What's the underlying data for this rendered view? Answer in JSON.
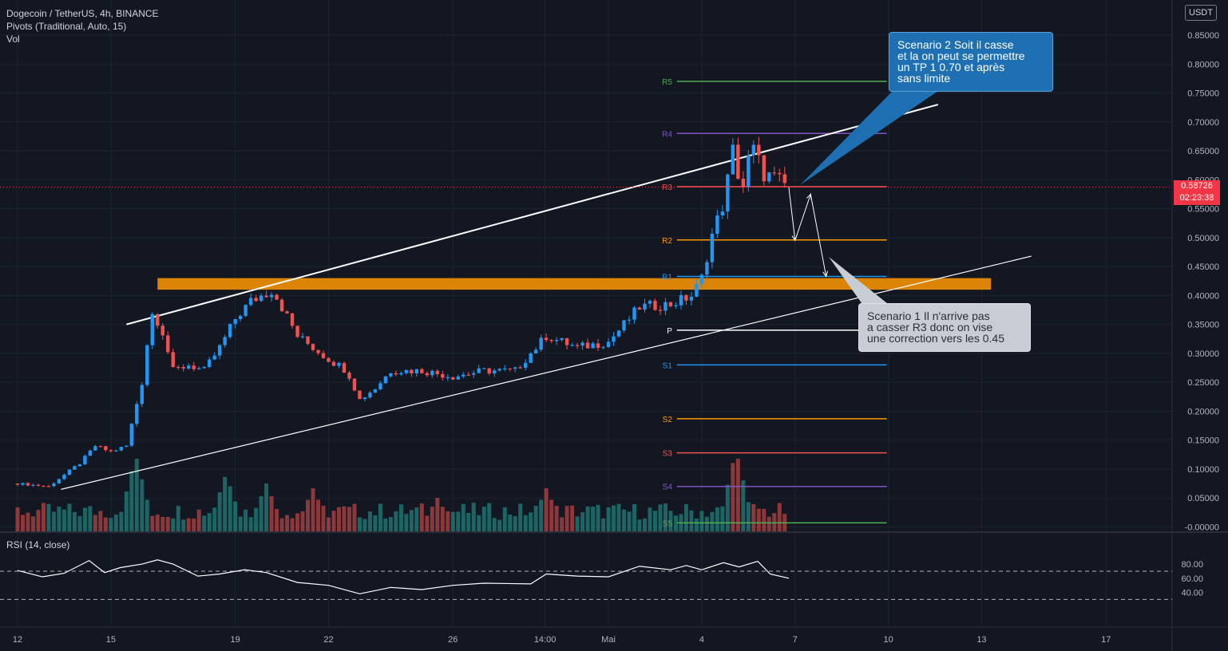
{
  "symbol_line": "Dogecoin / TetherUS, 4h, BINANCE",
  "pivots_line": "Pivots (Traditional, Auto, 15)",
  "vol_line": "Vol",
  "rsi_label": "RSI (14, close)",
  "currency_badge": "USDT",
  "current_price": "0.58726",
  "countdown": "02:23:38",
  "callout_scenario2": [
    "Scenario 2 Soit il casse",
    "et la on peut se permettre",
    "un TP 1 0.70 et après",
    "sans limite"
  ],
  "callout_scenario1": [
    "Scenario 1 Il n'arrive pas",
    "a casser R3 donc on vise",
    "une correction vers les 0.45"
  ],
  "colors": {
    "background": "#131722",
    "up_candle": "#2196f3",
    "down_candle": "#ef5350",
    "vol_up": "#26a69a",
    "vol_down": "#ef5350",
    "R5": "#4caf50",
    "R4": "#7e57c2",
    "R3": "#ef5350",
    "R2": "#ff9800",
    "R1": "#2196f3",
    "P": "#ffffff",
    "S1": "#2196f3",
    "S2": "#ff9800",
    "S3": "#ef5350",
    "S4": "#7e57c2",
    "S5": "#4caf50",
    "support_zone": "#ff9800",
    "trendline": "#ffffff"
  },
  "chart_data": {
    "type": "candlestick",
    "price_axis_ticks": [
      "0.85000",
      "0.80000",
      "0.75000",
      "0.70000",
      "0.65000",
      "0.60000",
      "0.55000",
      "0.50000",
      "0.45000",
      "0.40000",
      "0.35000",
      "0.30000",
      "0.25000",
      "0.20000",
      "0.15000",
      "0.10000",
      "0.05000",
      "-0.00000"
    ],
    "price_axis_values": [
      0.85,
      0.8,
      0.75,
      0.7,
      0.65,
      0.6,
      0.55,
      0.5,
      0.45,
      0.4,
      0.35,
      0.3,
      0.25,
      0.2,
      0.15,
      0.1,
      0.05,
      0.0
    ],
    "x_ticks": [
      {
        "label": "12",
        "pos": 0.0
      },
      {
        "label": "15",
        "pos": 3.0
      },
      {
        "label": "19",
        "pos": 7.0
      },
      {
        "label": "22",
        "pos": 10.0
      },
      {
        "label": "26",
        "pos": 14.0
      },
      {
        "label": "14:00",
        "pos": 16.96
      },
      {
        "label": "Mai",
        "pos": 19.0
      },
      {
        "label": "4",
        "pos": 22.0
      },
      {
        "label": "7",
        "pos": 25.0
      },
      {
        "label": "10",
        "pos": 28.0
      },
      {
        "label": "13",
        "pos": 31.0
      },
      {
        "label": "17",
        "pos": 35.0
      }
    ],
    "pivots": [
      {
        "name": "R5",
        "value": 0.77
      },
      {
        "name": "R4",
        "value": 0.68
      },
      {
        "name": "R3",
        "value": 0.588
      },
      {
        "name": "R2",
        "value": 0.496
      },
      {
        "name": "R1",
        "value": 0.433
      },
      {
        "name": "P",
        "value": 0.34
      },
      {
        "name": "S1",
        "value": 0.28
      },
      {
        "name": "S2",
        "value": 0.187
      },
      {
        "name": "S3",
        "value": 0.128
      },
      {
        "name": "S4",
        "value": 0.07
      },
      {
        "name": "S5",
        "value": 0.007
      }
    ],
    "support_zone": [
      0.41,
      0.43
    ],
    "rsi_axis_ticks": [
      "80.00",
      "60.00",
      "40.00"
    ],
    "rsi_axis_values": [
      80,
      60,
      40
    ],
    "rsi_bands": [
      70,
      30
    ],
    "key_prices": [
      {
        "pos": 0.0,
        "price": 0.075
      },
      {
        "pos": 1.0,
        "price": 0.07
      },
      {
        "pos": 2.0,
        "price": 0.11
      },
      {
        "pos": 2.5,
        "price": 0.14
      },
      {
        "pos": 3.0,
        "price": 0.13
      },
      {
        "pos": 3.5,
        "price": 0.14
      },
      {
        "pos": 4.0,
        "price": 0.25
      },
      {
        "pos": 4.3,
        "price": 0.37
      },
      {
        "pos": 4.6,
        "price": 0.35
      },
      {
        "pos": 5.0,
        "price": 0.27
      },
      {
        "pos": 5.5,
        "price": 0.28
      },
      {
        "pos": 6.0,
        "price": 0.27
      },
      {
        "pos": 6.5,
        "price": 0.31
      },
      {
        "pos": 7.0,
        "price": 0.36
      },
      {
        "pos": 7.5,
        "price": 0.39
      },
      {
        "pos": 8.2,
        "price": 0.41
      },
      {
        "pos": 9.0,
        "price": 0.33
      },
      {
        "pos": 10.0,
        "price": 0.29
      },
      {
        "pos": 10.6,
        "price": 0.27
      },
      {
        "pos": 11.0,
        "price": 0.22
      },
      {
        "pos": 11.5,
        "price": 0.24
      },
      {
        "pos": 12.0,
        "price": 0.27
      },
      {
        "pos": 13.0,
        "price": 0.27
      },
      {
        "pos": 14.0,
        "price": 0.26
      },
      {
        "pos": 15.0,
        "price": 0.27
      },
      {
        "pos": 16.0,
        "price": 0.27
      },
      {
        "pos": 17.0,
        "price": 0.33
      },
      {
        "pos": 18.0,
        "price": 0.31
      },
      {
        "pos": 19.0,
        "price": 0.32
      },
      {
        "pos": 20.0,
        "price": 0.38
      },
      {
        "pos": 21.0,
        "price": 0.385
      },
      {
        "pos": 21.7,
        "price": 0.4
      },
      {
        "pos": 22.0,
        "price": 0.43
      },
      {
        "pos": 22.3,
        "price": 0.5
      },
      {
        "pos": 22.7,
        "price": 0.56
      },
      {
        "pos": 23.0,
        "price": 0.65
      },
      {
        "pos": 23.3,
        "price": 0.58
      },
      {
        "pos": 23.6,
        "price": 0.66
      },
      {
        "pos": 24.0,
        "price": 0.61
      },
      {
        "pos": 24.4,
        "price": 0.6
      },
      {
        "pos": 24.8,
        "price": 0.587
      }
    ],
    "volume_peaks": [
      {
        "pos": 3.8,
        "value": 0.8
      },
      {
        "pos": 6.7,
        "value": 0.6
      },
      {
        "pos": 8.0,
        "value": 0.5
      },
      {
        "pos": 9.5,
        "value": 0.45
      },
      {
        "pos": 13.5,
        "value": 0.35
      },
      {
        "pos": 17.0,
        "value": 0.45
      },
      {
        "pos": 23.1,
        "value": 0.85
      },
      {
        "pos": 23.7,
        "value": 0.3
      }
    ],
    "rsi_values": [
      {
        "pos": 0.0,
        "value": 71
      },
      {
        "pos": 0.8,
        "value": 62
      },
      {
        "pos": 1.5,
        "value": 67
      },
      {
        "pos": 2.3,
        "value": 85
      },
      {
        "pos": 2.8,
        "value": 68
      },
      {
        "pos": 3.3,
        "value": 75
      },
      {
        "pos": 4.0,
        "value": 80
      },
      {
        "pos": 4.5,
        "value": 86
      },
      {
        "pos": 5.0,
        "value": 80
      },
      {
        "pos": 5.8,
        "value": 63
      },
      {
        "pos": 6.5,
        "value": 66
      },
      {
        "pos": 7.3,
        "value": 72
      },
      {
        "pos": 8.0,
        "value": 68
      },
      {
        "pos": 9.0,
        "value": 54
      },
      {
        "pos": 10.0,
        "value": 50
      },
      {
        "pos": 11.0,
        "value": 38
      },
      {
        "pos": 12.0,
        "value": 47
      },
      {
        "pos": 13.0,
        "value": 44
      },
      {
        "pos": 14.0,
        "value": 50
      },
      {
        "pos": 15.0,
        "value": 53
      },
      {
        "pos": 16.5,
        "value": 52
      },
      {
        "pos": 17.0,
        "value": 66
      },
      {
        "pos": 18.0,
        "value": 63
      },
      {
        "pos": 19.0,
        "value": 62
      },
      {
        "pos": 20.0,
        "value": 77
      },
      {
        "pos": 21.0,
        "value": 72
      },
      {
        "pos": 21.5,
        "value": 78
      },
      {
        "pos": 22.0,
        "value": 72
      },
      {
        "pos": 22.7,
        "value": 82
      },
      {
        "pos": 23.2,
        "value": 76
      },
      {
        "pos": 23.8,
        "value": 84
      },
      {
        "pos": 24.2,
        "value": 66
      },
      {
        "pos": 24.8,
        "value": 60
      }
    ],
    "trendlines": [
      {
        "name": "upper-resistance",
        "from": {
          "pos": 3.5,
          "price": 0.35
        },
        "to": {
          "pos": 29.6,
          "price": 0.73
        }
      },
      {
        "name": "lower-support",
        "from": {
          "pos": 1.4,
          "price": 0.065
        },
        "to": {
          "pos": 32.6,
          "price": 0.468
        }
      }
    ],
    "scenario_path": [
      {
        "pos": 24.8,
        "price": 0.587
      },
      {
        "pos": 25.0,
        "price": 0.495
      },
      {
        "pos": 25.5,
        "price": 0.575
      },
      {
        "pos": 26.0,
        "price": 0.433
      }
    ]
  }
}
